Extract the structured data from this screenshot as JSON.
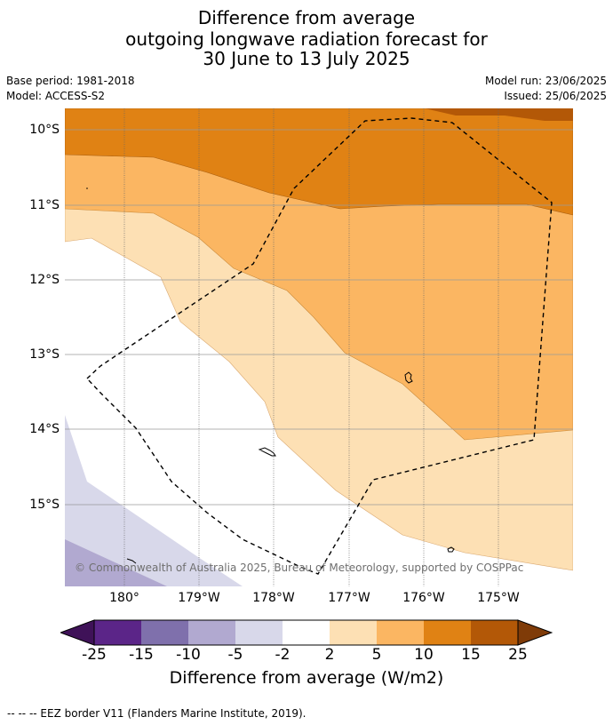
{
  "title": {
    "line1": "Difference from average",
    "line2": "outgoing longwave radiation forecast for",
    "line3": "30 June to 13 July 2025"
  },
  "meta": {
    "base_period": "Base period: 1981-2018",
    "model": "Model: ACCESS-S2",
    "model_run": "Model run: 23/06/2025",
    "issued": "Issued: 25/06/2025"
  },
  "map": {
    "lat_labels": [
      "10°S",
      "11°S",
      "12°S",
      "13°S",
      "14°S",
      "15°S"
    ],
    "lon_labels": [
      "180°",
      "179°W",
      "178°W",
      "177°W",
      "176°W",
      "175°W"
    ],
    "copyright": "© Commonwealth of Australia 2025, Bureau of Meteorology, supported by COSPPac"
  },
  "colorbar": {
    "ticks": [
      "-25",
      "-15",
      "-10",
      "-5",
      "-2",
      "2",
      "5",
      "10",
      "15",
      "25"
    ],
    "title": "Difference from average (W/m2)",
    "colors": {
      "lt_-25": "#3f1258",
      "-25_-15": "#5b2588",
      "-15_-10": "#7f70ac",
      "-10_-5": "#b1a9d0",
      "-5_-2": "#d8d8ea",
      "-2_2": "#ffffff",
      "2_5": "#fde0b4",
      "5_10": "#fbb662",
      "10_15": "#e08214",
      "15_25": "#b35807",
      "gt_25": "#7f3b08"
    }
  },
  "footer": {
    "legend": "-- -- -- EEZ border V11 (Flanders Marine Institute, 2019)."
  }
}
